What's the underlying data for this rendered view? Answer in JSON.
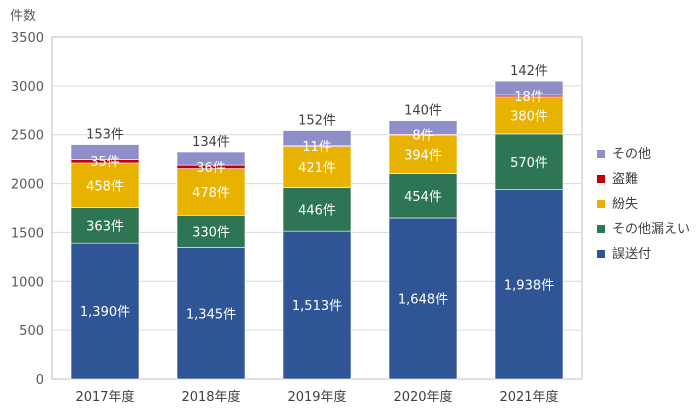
{
  "chart_data": {
    "type": "bar",
    "stacked": true,
    "ylabel": "件数",
    "ylim": [
      0,
      3500
    ],
    "yticks": [
      "0",
      "500",
      "1000",
      "1500",
      "2000",
      "2500",
      "3000",
      "3500"
    ],
    "categories": [
      "2017年度",
      "2018年度",
      "2019年度",
      "2020年度",
      "2021年度"
    ],
    "legend_position": "right",
    "grid": true,
    "series": [
      {
        "name": "誤送付",
        "color": "#2F5597",
        "values": [
          1390,
          1345,
          1513,
          1648,
          1938
        ],
        "labels": [
          "1,390件",
          "1,345件",
          "1,513件",
          "1,648件",
          "1,938件"
        ],
        "label_color": "#ffffff"
      },
      {
        "name": "その他漏えい",
        "color": "#2E7553",
        "values": [
          363,
          330,
          446,
          454,
          570
        ],
        "labels": [
          "363件",
          "330件",
          "446件",
          "454件",
          "570件"
        ],
        "label_color": "#ffffff"
      },
      {
        "name": "紛失",
        "color": "#E8B200",
        "values": [
          458,
          478,
          421,
          394,
          380
        ],
        "labels": [
          "458件",
          "478件",
          "421件",
          "394件",
          "380件"
        ],
        "label_color": "#ffffff"
      },
      {
        "name": "盗難",
        "color": "#C00000",
        "values": [
          35,
          36,
          11,
          8,
          18
        ],
        "labels": [
          "35件",
          "36件",
          "11件",
          "8件",
          "18件"
        ],
        "label_color": "#ffffff"
      },
      {
        "name": "その他",
        "color": "#8E8FC9",
        "values": [
          153,
          134,
          152,
          140,
          142
        ],
        "labels": [
          "153件",
          "134件",
          "152件",
          "140件",
          "142件"
        ],
        "label_color": "#404040"
      }
    ],
    "legend_order": [
      4,
      3,
      2,
      1,
      0
    ]
  }
}
